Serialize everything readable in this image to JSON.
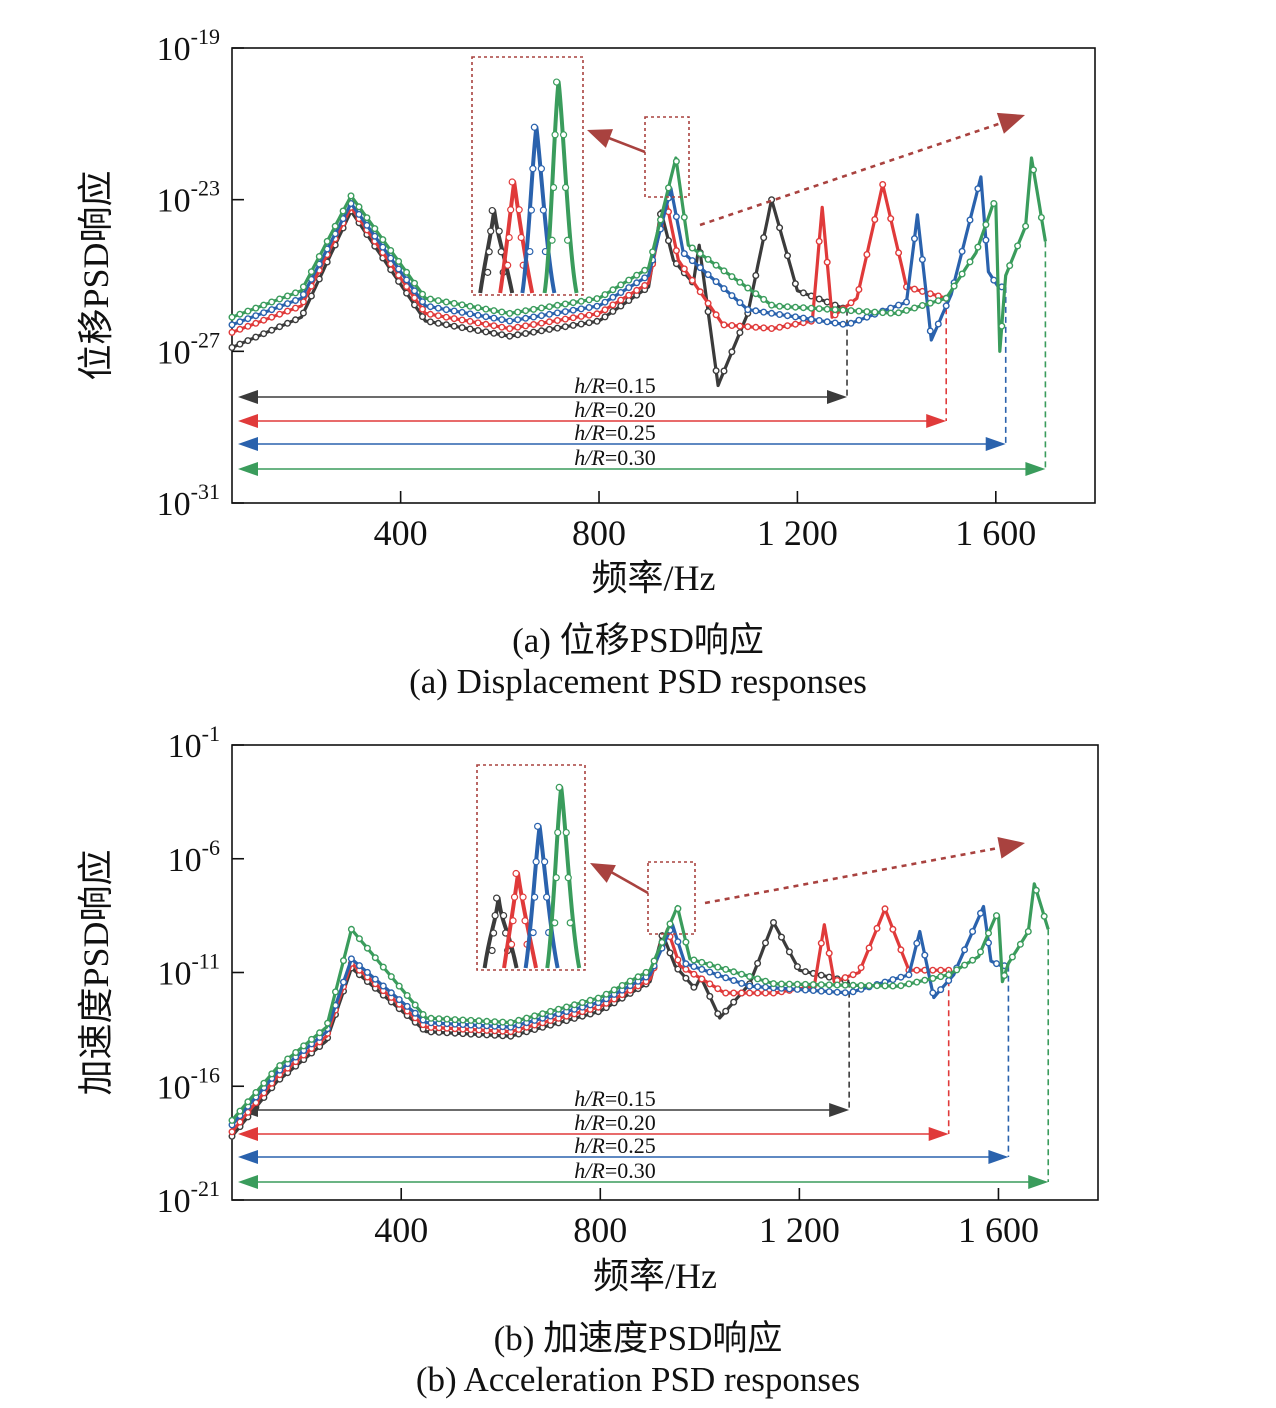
{
  "captions": {
    "a_cn": "(a) 位移PSD响应",
    "a_en": "(a) Displacement PSD responses",
    "b_cn": "(b) 加速度PSD响应",
    "b_en": "(b) Acceleration PSD responses"
  },
  "colors": {
    "h015": "#3b3b3b",
    "h020": "#e03a3a",
    "h025": "#2a62ad",
    "h030": "#3a9c5c",
    "annotation": "#a9423f"
  },
  "chart_data": [
    {
      "id": "a",
      "type": "line",
      "xlabel": "频率/Hz",
      "ylabel": "位移PSD响应",
      "xlim": [
        60,
        1800
      ],
      "ylim_exp": [
        -31,
        -19
      ],
      "log_y": true,
      "x_ticks": [
        400,
        800,
        1200,
        1600
      ],
      "x_tick_labels": [
        "400",
        "800",
        "1 200",
        "1 600"
      ],
      "y_ticks_exp": [
        -31,
        -27,
        -23,
        -19
      ],
      "y_tick_labels": [
        "10",
        "10",
        "10",
        "10"
      ],
      "y_tick_sups": [
        "-31",
        "-27",
        "-23",
        "-19"
      ],
      "grid": false,
      "series": [
        {
          "key": "h015",
          "name": "h/R=0.15",
          "fmax": 1300,
          "x": [
            60,
            200,
            300,
            450,
            620,
            800,
            900,
            925,
            950,
            990,
            1002,
            1040,
            1100,
            1148,
            1200,
            1300
          ],
          "y": [
            -26.9,
            -26.1,
            -23.3,
            -26.2,
            -26.6,
            -26.2,
            -25.3,
            -23.3,
            -24.6,
            -25.2,
            -24.2,
            -27.9,
            -26.0,
            -23.0,
            -25.4,
            -25.9
          ]
        },
        {
          "key": "h020",
          "name": "h/R=0.20",
          "fmax": 1500,
          "x": [
            60,
            200,
            300,
            450,
            620,
            800,
            900,
            935,
            960,
            1050,
            1150,
            1230,
            1250,
            1270,
            1320,
            1372,
            1420,
            1500
          ],
          "y": [
            -26.5,
            -25.8,
            -23.2,
            -26.0,
            -26.4,
            -26.0,
            -25.2,
            -23.0,
            -24.6,
            -26.3,
            -26.4,
            -26.2,
            -23.2,
            -26.1,
            -25.6,
            -22.6,
            -25.3,
            -25.6
          ]
        },
        {
          "key": "h025",
          "name": "h/R=0.25",
          "fmax": 1620,
          "x": [
            60,
            200,
            300,
            450,
            620,
            800,
            900,
            945,
            970,
            1100,
            1300,
            1420,
            1442,
            1470,
            1510,
            1570,
            1585,
            1605,
            1620
          ],
          "y": [
            -26.3,
            -25.6,
            -23.1,
            -25.8,
            -26.2,
            -25.8,
            -25.0,
            -22.7,
            -24.4,
            -25.9,
            -26.3,
            -25.7,
            -23.4,
            -26.7,
            -25.5,
            -22.4,
            -24.9,
            -25.3,
            -25.3
          ]
        },
        {
          "key": "h030",
          "name": "h/R=0.30",
          "fmax": 1700,
          "x": [
            60,
            200,
            300,
            450,
            620,
            800,
            900,
            955,
            980,
            1150,
            1400,
            1500,
            1560,
            1595,
            1600,
            1608,
            1620,
            1660,
            1672,
            1700
          ],
          "y": [
            -26.1,
            -25.4,
            -22.9,
            -25.6,
            -26.0,
            -25.6,
            -24.8,
            -21.9,
            -24.2,
            -25.8,
            -26.0,
            -25.6,
            -24.4,
            -23.1,
            -23.1,
            -27.0,
            -25.0,
            -23.7,
            -21.9,
            -24.1
          ]
        }
      ],
      "range_labels": [
        "h/R=0.15",
        "h/R=0.20",
        "h/R=0.25",
        "h/R=0.30"
      ]
    },
    {
      "id": "b",
      "type": "line",
      "xlabel": "频率/Hz",
      "ylabel": "加速度PSD响应",
      "xlim": [
        60,
        1800
      ],
      "ylim_exp": [
        -21,
        -1
      ],
      "log_y": true,
      "x_ticks": [
        400,
        800,
        1200,
        1600
      ],
      "x_tick_labels": [
        "400",
        "800",
        "1 200",
        "1 600"
      ],
      "y_ticks_exp": [
        -21,
        -16,
        -11,
        -6,
        -1
      ],
      "y_tick_labels": [
        "10",
        "10",
        "10",
        "10",
        "10"
      ],
      "y_tick_sups": [
        "-21",
        "-16",
        "-11",
        "-6",
        "-1"
      ],
      "grid": false,
      "series": [
        {
          "key": "h015",
          "name": "h/R=0.15",
          "fmax": 1300,
          "x": [
            60,
            150,
            250,
            300,
            450,
            620,
            800,
            900,
            925,
            950,
            990,
            1002,
            1040,
            1100,
            1148,
            1200,
            1300
          ],
          "y": [
            -18.2,
            -15.8,
            -14.0,
            -10.8,
            -13.6,
            -13.8,
            -12.7,
            -11.4,
            -9.3,
            -10.7,
            -11.7,
            -11.2,
            -13.0,
            -11.5,
            -8.8,
            -10.9,
            -11.4
          ]
        },
        {
          "key": "h020",
          "name": "h/R=0.20",
          "fmax": 1500,
          "x": [
            60,
            150,
            250,
            300,
            450,
            620,
            800,
            900,
            935,
            960,
            1050,
            1150,
            1230,
            1250,
            1270,
            1320,
            1372,
            1420,
            1500
          ],
          "y": [
            -18.0,
            -15.6,
            -13.8,
            -10.6,
            -13.4,
            -13.6,
            -12.5,
            -11.3,
            -9.1,
            -10.7,
            -11.9,
            -11.9,
            -11.6,
            -8.9,
            -11.4,
            -11.0,
            -8.2,
            -10.9,
            -10.9
          ]
        },
        {
          "key": "h025",
          "name": "h/R=0.25",
          "fmax": 1620,
          "x": [
            60,
            150,
            250,
            300,
            450,
            620,
            800,
            900,
            945,
            970,
            1100,
            1300,
            1420,
            1442,
            1470,
            1510,
            1570,
            1585,
            1605,
            1620
          ],
          "y": [
            -17.7,
            -15.4,
            -13.6,
            -10.4,
            -13.2,
            -13.4,
            -12.3,
            -11.1,
            -8.9,
            -10.6,
            -11.6,
            -11.9,
            -11.1,
            -9.2,
            -12.1,
            -11.1,
            -8.1,
            -10.5,
            -10.7,
            -10.7
          ]
        },
        {
          "key": "h030",
          "name": "h/R=0.30",
          "fmax": 1700,
          "x": [
            60,
            150,
            250,
            300,
            450,
            620,
            800,
            900,
            955,
            980,
            1150,
            1400,
            1500,
            1560,
            1595,
            1600,
            1608,
            1620,
            1660,
            1672,
            1700
          ],
          "y": [
            -17.5,
            -15.2,
            -13.4,
            -9.1,
            -13.0,
            -13.2,
            -12.1,
            -10.9,
            -8.1,
            -10.4,
            -11.5,
            -11.6,
            -11.1,
            -10.3,
            -8.5,
            -8.5,
            -11.4,
            -10.6,
            -9.2,
            -7.1,
            -9.1
          ]
        }
      ],
      "range_labels": [
        "h/R=0.15",
        "h/R=0.20",
        "h/R=0.25",
        "h/R=0.30"
      ]
    }
  ]
}
